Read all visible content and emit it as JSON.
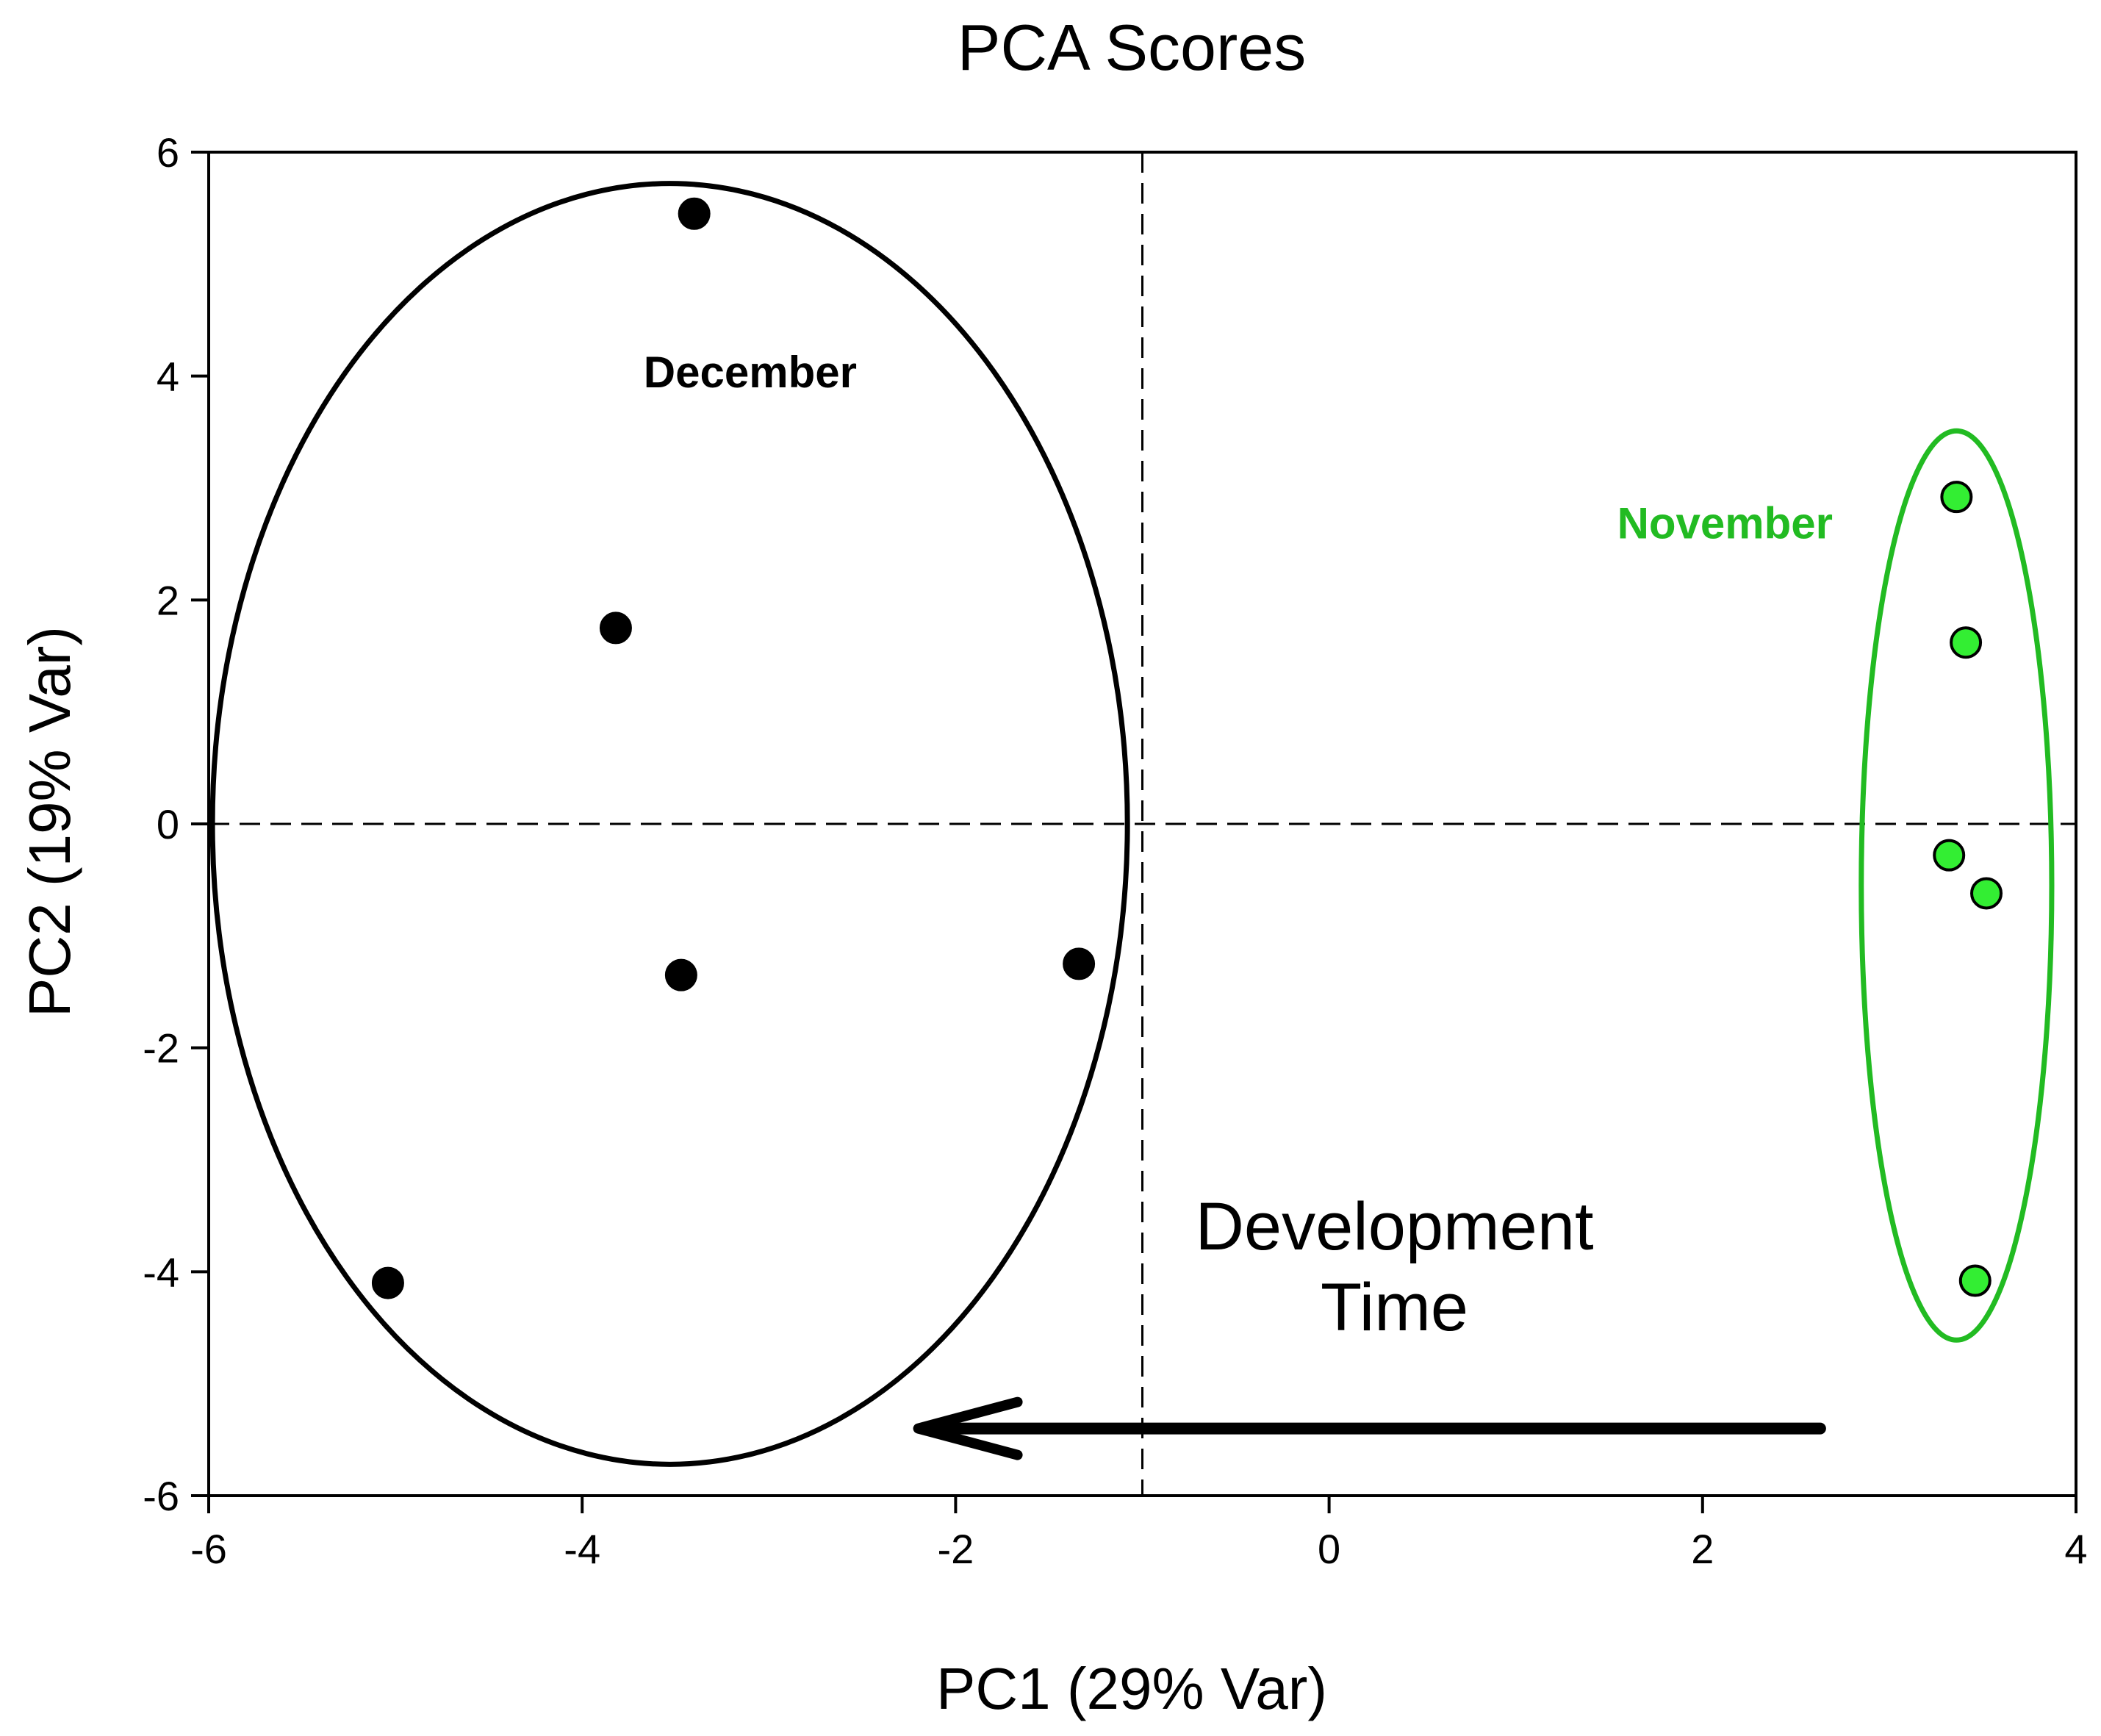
{
  "chart_data": {
    "type": "scatter",
    "title": "PCA Scores",
    "xlabel": "PC1 (29% Var)",
    "ylabel": "PC2 (19% Var)",
    "xlim": [
      -6,
      4
    ],
    "ylim": [
      -6,
      6
    ],
    "xticks": [
      -6,
      -4,
      -2,
      0,
      2,
      4
    ],
    "yticks": [
      -6,
      -4,
      -2,
      0,
      2,
      4,
      6
    ],
    "grid": false,
    "reference_lines": {
      "x": -1,
      "y": 0,
      "style": "dashed"
    },
    "series": [
      {
        "name": "December",
        "color": "#000000",
        "points": [
          {
            "x": -3.4,
            "y": 5.45
          },
          {
            "x": -3.82,
            "y": 1.75
          },
          {
            "x": -3.47,
            "y": -1.35
          },
          {
            "x": -1.34,
            "y": -1.25
          },
          {
            "x": -5.04,
            "y": -4.1
          }
        ],
        "ellipse": {
          "cx": -3.53,
          "cy": 0,
          "rx": 2.45,
          "ry": 5.72,
          "color": "#000000"
        },
        "label": {
          "text": "December",
          "x": -3.1,
          "y": 3.9
        }
      },
      {
        "name": "November",
        "color": "#33ee33",
        "points": [
          {
            "x": 3.36,
            "y": 2.92
          },
          {
            "x": 3.41,
            "y": 1.62
          },
          {
            "x": 3.32,
            "y": -0.28
          },
          {
            "x": 3.52,
            "y": -0.62
          },
          {
            "x": 3.46,
            "y": -4.08
          }
        ],
        "ellipse": {
          "cx": 3.36,
          "cy": -0.55,
          "rx": 0.51,
          "ry": 4.06,
          "color": "#22bb22"
        },
        "label": {
          "text": "November",
          "x": 2.12,
          "y": 2.55,
          "color": "#22bb22"
        }
      }
    ],
    "annotations": [
      {
        "lines": [
          "Development",
          "Time"
        ],
        "x": 0.35,
        "y": -3.8
      },
      {
        "type": "arrow",
        "from": [
          2.63,
          -5.4
        ],
        "to": [
          -2.2,
          -5.4
        ]
      }
    ]
  }
}
